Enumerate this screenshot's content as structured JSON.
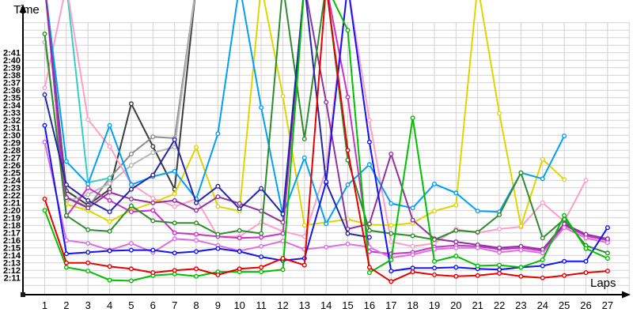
{
  "chart_data": {
    "type": "line",
    "title": "",
    "xlabel": "Laps",
    "ylabel": "Time",
    "x_ticks": [
      "1",
      "2",
      "3",
      "4",
      "5",
      "6",
      "7",
      "8",
      "9",
      "10",
      "11",
      "12",
      "13",
      "14",
      "15",
      "16",
      "17",
      "18",
      "19",
      "20",
      "21",
      "22",
      "23",
      "24",
      "25",
      "26",
      "27"
    ],
    "y_ticks": [
      "2:11",
      "2:12",
      "2:13",
      "2:14",
      "2:15",
      "2:16",
      "2:17",
      "2:18",
      "2:19",
      "2:20",
      "2:21",
      "2:22",
      "2:23",
      "2:24",
      "2:25",
      "2:26",
      "2:27",
      "2:28",
      "2:29",
      "2:30",
      "2:31",
      "2:32",
      "2:33",
      "2:34",
      "2:35",
      "2:36",
      "2:37",
      "2:38",
      "2:39",
      "2:40",
      "2:41"
    ],
    "y_tick_base_seconds": 131,
    "grid": true,
    "legend_position": "none",
    "axis_range_note": "values above 2:45 run off the top of the plot (pit stops), drawn clipped",
    "clip_seconds": 170,
    "marker": "open-circle",
    "series": [
      {
        "name": "black",
        "color": "#3c3c3c",
        "lap_times_seconds": [
          170,
          142.6,
          140.7,
          142.8,
          154.2,
          148.5,
          142.8,
          170,
          null,
          null,
          null,
          null,
          null,
          null,
          null,
          null,
          null,
          null,
          null,
          null,
          null,
          null,
          null,
          null,
          null,
          null,
          null
        ]
      },
      {
        "name": "gray",
        "color": "#8c8c8c",
        "lap_times_seconds": [
          170,
          141.8,
          140.4,
          144.3,
          147.5,
          149.8,
          149.6,
          170,
          null,
          null,
          null,
          null,
          null,
          null,
          null,
          null,
          null,
          null,
          null,
          null,
          null,
          null,
          null,
          null,
          null,
          null,
          null
        ]
      },
      {
        "name": "silver",
        "color": "#b6b6b6",
        "lap_times_seconds": [
          162.4,
          141.2,
          142.1,
          143.6,
          146.0,
          147.7,
          148.4,
          170,
          null,
          null,
          null,
          null,
          null,
          null,
          null,
          null,
          null,
          null,
          null,
          null,
          null,
          null,
          null,
          null,
          null,
          null,
          null
        ]
      },
      {
        "name": "cyan",
        "color": "#35cec6",
        "lap_times_seconds": [
          170,
          170,
          143.7,
          144.3,
          null,
          null,
          null,
          null,
          null,
          null,
          null,
          null,
          null,
          null,
          null,
          null,
          null,
          null,
          null,
          null,
          null,
          null,
          null,
          null,
          null,
          null,
          null
        ]
      },
      {
        "name": "pink",
        "color": "#ff9ec6",
        "lap_times_seconds": [
          156.3,
          170,
          152.1,
          148.5,
          143.5,
          141.6,
          140.5,
          141.5,
          136.5,
          136.5,
          138.4,
          137.2,
          136.5,
          145.5,
          170,
          152.0,
          135.8,
          135.2,
          135.6,
          137.5,
          137.0,
          137.5,
          137.8,
          141.0,
          138.5,
          144.0,
          null
        ]
      },
      {
        "name": "yellow",
        "color": "#ded600",
        "lap_times_seconds": [
          170,
          140.8,
          140.0,
          138.5,
          140.0,
          141.0,
          142.2,
          148.4,
          140.5,
          139.9,
          170,
          155.2,
          138.0,
          138.4,
          138.8,
          138.1,
          138.0,
          138.3,
          139.9,
          140.7,
          170,
          152.9,
          137.9,
          146.8,
          144.1,
          null,
          null
        ]
      },
      {
        "name": "skyblue",
        "color": "#00a0f8",
        "lap_times_seconds": [
          170,
          146.5,
          143.5,
          151.3,
          143.4,
          144.5,
          145.2,
          141.5,
          150.2,
          170,
          153.7,
          139.4,
          147.0,
          138.2,
          143.4,
          146.1,
          140.9,
          140.3,
          143.5,
          142.3,
          139.9,
          139.8,
          145.0,
          144.2,
          149.9,
          null,
          null
        ]
      },
      {
        "name": "magenta",
        "color": "#c832c8",
        "lap_times_seconds": [
          170,
          139.2,
          143.0,
          141.3,
          139.8,
          140.0,
          137.0,
          136.8,
          136.5,
          136.3,
          136.4,
          136.9,
          170,
          170,
          155.1,
          134.5,
          134.2,
          134.4,
          135.1,
          135.3,
          135.2,
          134.8,
          135.0,
          134.6,
          138.0,
          136.6,
          136.0
        ]
      },
      {
        "name": "purple",
        "color": "#8f32a0",
        "lap_times_seconds": [
          170,
          141.7,
          140.3,
          142.4,
          141.5,
          141.0,
          141.3,
          140.0,
          141.8,
          140.9,
          139.9,
          138.4,
          170,
          154.4,
          137.5,
          138.2,
          147.5,
          138.7,
          136.2,
          135.8,
          135.4,
          135.0,
          135.2,
          134.8,
          138.2,
          136.8,
          136.2
        ]
      },
      {
        "name": "violet",
        "color": "#de6ee0",
        "lap_times_seconds": [
          149.1,
          136.0,
          135.6,
          134.7,
          135.6,
          134.4,
          136.2,
          136.0,
          135.3,
          134.6,
          135.2,
          135.9,
          134.8,
          135.1,
          135.5,
          135.1,
          133.7,
          134.1,
          134.8,
          135.0,
          135.0,
          134.4,
          134.7,
          134.3,
          137.7,
          136.3,
          135.7
        ]
      },
      {
        "name": "forestgreen",
        "color": "#2e8b2e",
        "lap_times_seconds": [
          163.5,
          139.3,
          137.4,
          137.2,
          140.6,
          138.6,
          138.3,
          138.3,
          136.8,
          137.3,
          136.9,
          170,
          149.5,
          170,
          146.7,
          137.3,
          136.9,
          136.6,
          136.1,
          137.3,
          137.1,
          139.4,
          145.0,
          136.3,
          138.8,
          135.3,
          134.3
        ]
      },
      {
        "name": "navy",
        "color": "#2525a8",
        "lap_times_seconds": [
          155.4,
          143.4,
          141.3,
          139.8,
          142.8,
          144.7,
          149.4,
          141.0,
          143.2,
          140.2,
          142.9,
          139.5,
          170,
          143.7,
          136.9,
          136.4,
          null,
          null,
          null,
          null,
          null,
          null,
          null,
          null,
          null,
          null,
          null
        ]
      },
      {
        "name": "blue",
        "color": "#1414ee",
        "lap_times_seconds": [
          151.3,
          134.2,
          134.4,
          134.6,
          134.7,
          134.7,
          134.3,
          134.5,
          134.9,
          134.5,
          133.8,
          133.3,
          133.6,
          143.8,
          170,
          149.1,
          131.9,
          132.3,
          132.3,
          132.4,
          132.2,
          132.1,
          132.4,
          132.6,
          133.2,
          133.2,
          137.7
        ]
      },
      {
        "name": "green",
        "color": "#00c000",
        "lap_times_seconds": [
          140.0,
          132.4,
          131.9,
          130.7,
          130.6,
          131.3,
          131.5,
          131.2,
          131.8,
          131.8,
          131.8,
          132.1,
          170,
          170,
          164.0,
          131.7,
          133.4,
          152.3,
          133.2,
          133.9,
          132.6,
          132.7,
          132.4,
          133.4,
          139.3,
          134.9,
          133.6
        ]
      },
      {
        "name": "red",
        "color": "#e80000",
        "lap_times_seconds": [
          141.5,
          133.0,
          133.0,
          132.5,
          132.2,
          131.7,
          132.0,
          132.2,
          131.4,
          132.2,
          132.4,
          133.6,
          132.7,
          170,
          148.0,
          132.4,
          130.5,
          131.8,
          131.4,
          131.2,
          131.3,
          131.6,
          131.2,
          131.0,
          131.3,
          131.7,
          131.9
        ]
      }
    ]
  }
}
